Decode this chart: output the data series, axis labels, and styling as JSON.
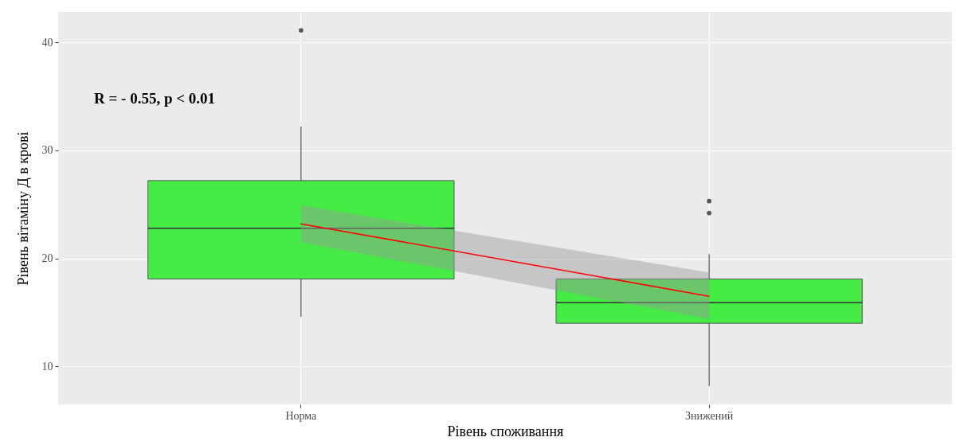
{
  "chart_data": {
    "type": "box",
    "xlabel": "Рівень споживання",
    "ylabel": "Рівень вітаміну Д в крові",
    "categories": [
      "Норма",
      "Знижений"
    ],
    "ylim": [
      6.5,
      42.8
    ],
    "yticks": [
      10,
      20,
      30,
      40
    ],
    "grid": true,
    "annotations": [
      "R = - 0.55, p < 0.01"
    ],
    "series": [
      {
        "type": "box",
        "color": "#46eb46",
        "boxes": [
          {
            "low": 14.6,
            "q1": 18.1,
            "median": 22.8,
            "q3": 27.2,
            "high": 32.2,
            "outliers": [
              41.1
            ]
          },
          {
            "low": 8.2,
            "q1": 14.0,
            "median": 15.9,
            "q3": 18.1,
            "high": 20.4,
            "outliers": [
              24.2,
              25.3
            ]
          }
        ]
      },
      {
        "type": "line",
        "color": "#ff0000",
        "values": [
          23.2,
          16.5
        ],
        "lower": [
          21.5,
          14.4
        ],
        "upper": [
          24.9,
          18.7
        ]
      }
    ]
  }
}
